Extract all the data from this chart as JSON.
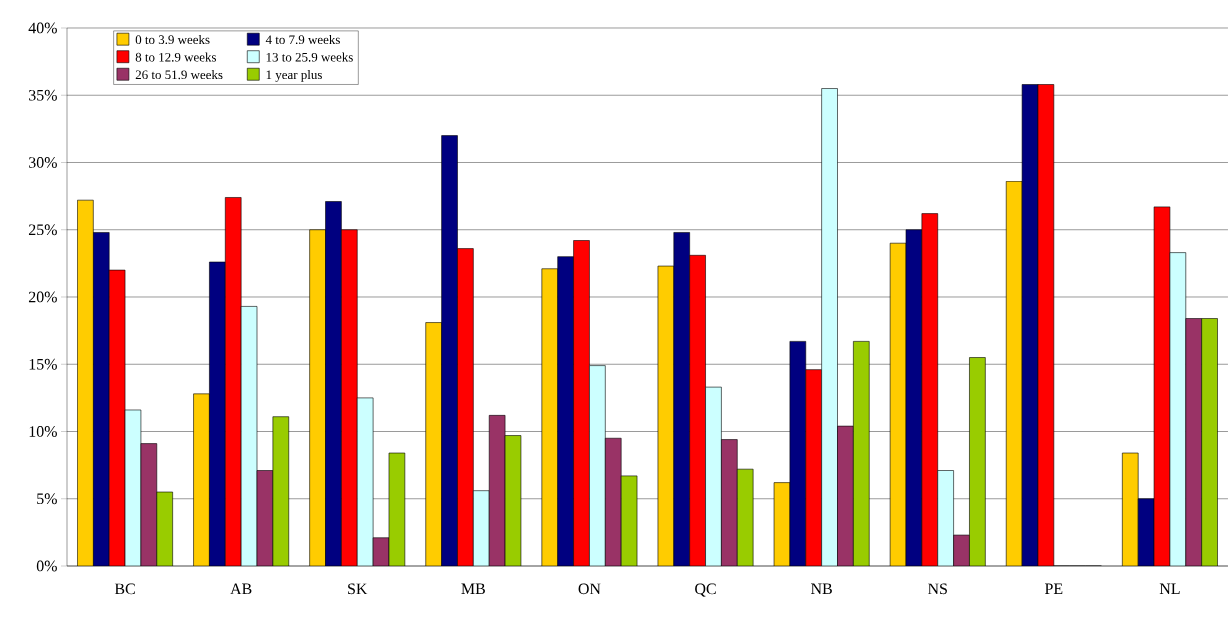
{
  "chart_data": {
    "type": "bar",
    "categories": [
      "BC",
      "AB",
      "SK",
      "MB",
      "ON",
      "QC",
      "NB",
      "NS",
      "PE",
      "NL"
    ],
    "series": [
      {
        "name": "0 to 3.9 weeks",
        "color": "#ffcc00",
        "values": [
          27.2,
          12.8,
          25.0,
          18.1,
          22.1,
          22.3,
          6.2,
          24.0,
          28.6,
          8.4
        ]
      },
      {
        "name": "4 to 7.9 weeks",
        "color": "#000080",
        "values": [
          24.8,
          22.6,
          27.1,
          32.0,
          23.0,
          24.8,
          16.7,
          25.0,
          35.8,
          5.0
        ]
      },
      {
        "name": "8 to 12.9 weeks",
        "color": "#ff0000",
        "values": [
          22.0,
          27.4,
          25.0,
          23.6,
          24.2,
          23.1,
          14.6,
          26.2,
          35.8,
          26.7
        ]
      },
      {
        "name": "13 to 25.9 weeks",
        "color": "#ccffff",
        "values": [
          11.6,
          19.3,
          12.5,
          5.6,
          14.9,
          13.3,
          35.5,
          7.1,
          0,
          23.3
        ]
      },
      {
        "name": "26 to 51.9 weeks",
        "color": "#993366",
        "values": [
          9.1,
          7.1,
          2.1,
          11.2,
          9.5,
          9.4,
          10.4,
          2.3,
          0,
          18.4
        ]
      },
      {
        "name": "1 year plus",
        "color": "#99cc00",
        "values": [
          5.5,
          11.1,
          8.4,
          9.7,
          6.7,
          7.2,
          16.7,
          15.5,
          0,
          18.4
        ]
      }
    ],
    "ylim": [
      0,
      40
    ],
    "yticks": [
      {
        "value": 0,
        "label": "0%"
      },
      {
        "value": 5,
        "label": "5%"
      },
      {
        "value": 10,
        "label": "10%"
      },
      {
        "value": 15,
        "label": "15%"
      },
      {
        "value": 20,
        "label": "20%"
      },
      {
        "value": 25,
        "label": "25%"
      },
      {
        "value": 30,
        "label": "30%"
      },
      {
        "value": 35,
        "label": "35%"
      },
      {
        "value": 40,
        "label": "40%"
      }
    ],
    "grid": "y",
    "legend": "top left"
  }
}
